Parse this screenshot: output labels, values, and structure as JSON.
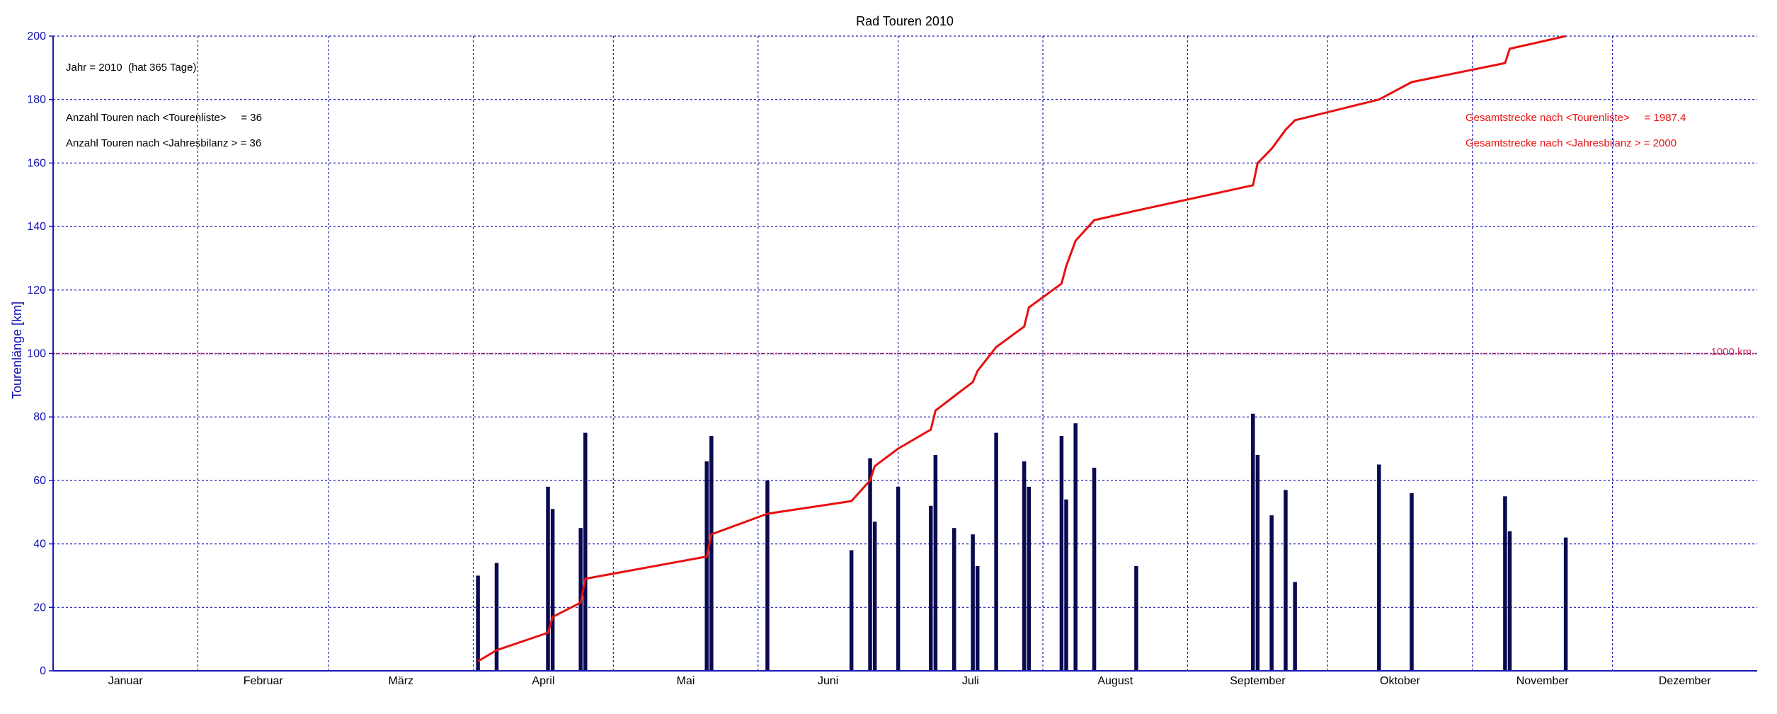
{
  "chart_data": {
    "type": "bar",
    "title": "Rad Touren 2010",
    "ylabel": "Tourenlänge [km]",
    "xlabel": "",
    "ylim": [
      0,
      200
    ],
    "xlim": [
      0,
      365
    ],
    "grid": true,
    "yticks": [
      0,
      20,
      40,
      60,
      80,
      100,
      120,
      140,
      160,
      180,
      200
    ],
    "months": [
      "Januar",
      "Februar",
      "März",
      "April",
      "Mai",
      "Juni",
      "Juli",
      "August",
      "September",
      "Oktober",
      "November",
      "Dezember"
    ],
    "month_start_days": [
      0,
      31,
      59,
      90,
      120,
      151,
      181,
      212,
      243,
      273,
      304,
      334,
      365
    ],
    "annotations": [
      "Jahr = 2010  (hat 365 Tage)",
      "Anzahl Touren nach <Tourenliste>     = 36",
      "Anzahl Touren nach <Jahresbilanz > = 36"
    ],
    "totals": [
      "Gesamtstrecke nach <Tourenliste>     = 1987.4",
      "Gesamtstrecke nach <Jahresbilanz > = 2000"
    ],
    "reference_line": {
      "value": 100,
      "label": "1000 km",
      "color": "#cc3366"
    },
    "series": [
      {
        "kind": "bar",
        "color": "#0a0a50",
        "points": [
          {
            "day": 91,
            "km": 30
          },
          {
            "day": 95,
            "km": 34
          },
          {
            "day": 106,
            "km": 58
          },
          {
            "day": 107,
            "km": 51
          },
          {
            "day": 113,
            "km": 45
          },
          {
            "day": 114,
            "km": 75
          },
          {
            "day": 140,
            "km": 66
          },
          {
            "day": 141,
            "km": 74
          },
          {
            "day": 153,
            "km": 60
          },
          {
            "day": 171,
            "km": 38
          },
          {
            "day": 175,
            "km": 67
          },
          {
            "day": 176,
            "km": 47
          },
          {
            "day": 181,
            "km": 58
          },
          {
            "day": 188,
            "km": 52
          },
          {
            "day": 189,
            "km": 68
          },
          {
            "day": 193,
            "km": 45
          },
          {
            "day": 197,
            "km": 43
          },
          {
            "day": 198,
            "km": 33
          },
          {
            "day": 202,
            "km": 75
          },
          {
            "day": 208,
            "km": 66
          },
          {
            "day": 209,
            "km": 58
          },
          {
            "day": 216,
            "km": 74
          },
          {
            "day": 217,
            "km": 54
          },
          {
            "day": 219,
            "km": 78
          },
          {
            "day": 223,
            "km": 64
          },
          {
            "day": 232,
            "km": 33
          },
          {
            "day": 257,
            "km": 81
          },
          {
            "day": 258,
            "km": 68
          },
          {
            "day": 261,
            "km": 49
          },
          {
            "day": 264,
            "km": 57
          },
          {
            "day": 266,
            "km": 28
          },
          {
            "day": 284,
            "km": 65
          },
          {
            "day": 291,
            "km": 56
          },
          {
            "day": 311,
            "km": 55
          },
          {
            "day": 312,
            "km": 44
          },
          {
            "day": 324,
            "km": 42
          }
        ]
      },
      {
        "kind": "line",
        "color": "#e81010",
        "points": [
          {
            "day": 91,
            "v": 3
          },
          {
            "day": 95,
            "v": 6.5
          },
          {
            "day": 106,
            "v": 12
          },
          {
            "day": 107,
            "v": 17
          },
          {
            "day": 113,
            "v": 21.5
          },
          {
            "day": 114,
            "v": 29
          },
          {
            "day": 140,
            "v": 36
          },
          {
            "day": 141,
            "v": 43
          },
          {
            "day": 153,
            "v": 49.5
          },
          {
            "day": 171,
            "v": 53.5
          },
          {
            "day": 175,
            "v": 60
          },
          {
            "day": 176,
            "v": 64.5
          },
          {
            "day": 181,
            "v": 70
          },
          {
            "day": 188,
            "v": 76
          },
          {
            "day": 189,
            "v": 82
          },
          {
            "day": 193,
            "v": 86.5
          },
          {
            "day": 197,
            "v": 91
          },
          {
            "day": 198,
            "v": 94.5
          },
          {
            "day": 202,
            "v": 102
          },
          {
            "day": 208,
            "v": 108.5
          },
          {
            "day": 209,
            "v": 114.5
          },
          {
            "day": 216,
            "v": 122
          },
          {
            "day": 217,
            "v": 127.5
          },
          {
            "day": 219,
            "v": 135.5
          },
          {
            "day": 223,
            "v": 142
          },
          {
            "day": 232,
            "v": 145
          },
          {
            "day": 257,
            "v": 153
          },
          {
            "day": 258,
            "v": 160
          },
          {
            "day": 261,
            "v": 164.5
          },
          {
            "day": 264,
            "v": 170.5
          },
          {
            "day": 266,
            "v": 173.5
          },
          {
            "day": 284,
            "v": 180
          },
          {
            "day": 291,
            "v": 185.5
          },
          {
            "day": 311,
            "v": 191.5
          },
          {
            "day": 312,
            "v": 196
          },
          {
            "day": 324,
            "v": 200
          }
        ]
      }
    ]
  }
}
